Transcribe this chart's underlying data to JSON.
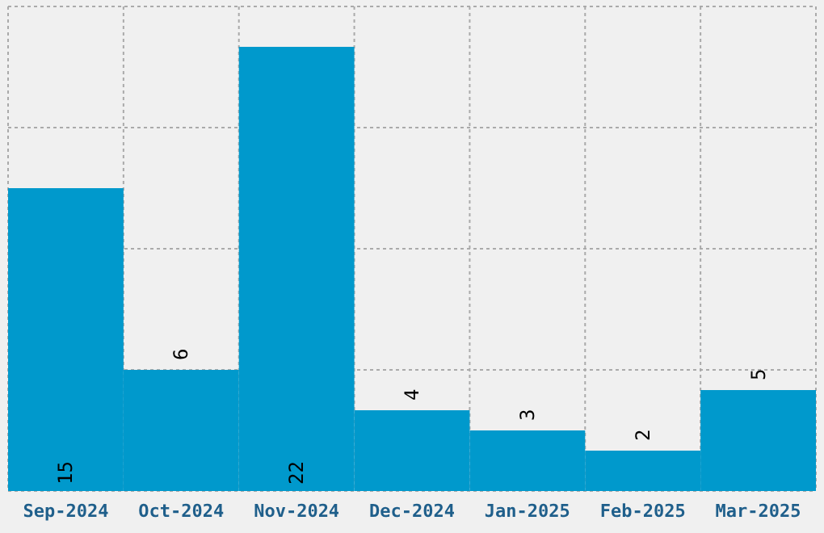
{
  "chart_data": {
    "type": "bar",
    "categories": [
      "Sep-2024",
      "Oct-2024",
      "Nov-2024",
      "Dec-2024",
      "Jan-2025",
      "Feb-2025",
      "Mar-2025"
    ],
    "values": [
      15,
      6,
      22,
      4,
      3,
      2,
      5
    ],
    "color": "#0099cc",
    "ylim": [
      0,
      24
    ],
    "yticks": [
      {
        "value": 0,
        "label": null
      },
      {
        "value": 6,
        "label": null
      },
      {
        "value": 12,
        "label": null
      },
      {
        "value": 18,
        "label": null
      },
      {
        "value": 24,
        "label": null
      }
    ],
    "tick_labels": "x",
    "grid": true,
    "data_labels": true
  }
}
